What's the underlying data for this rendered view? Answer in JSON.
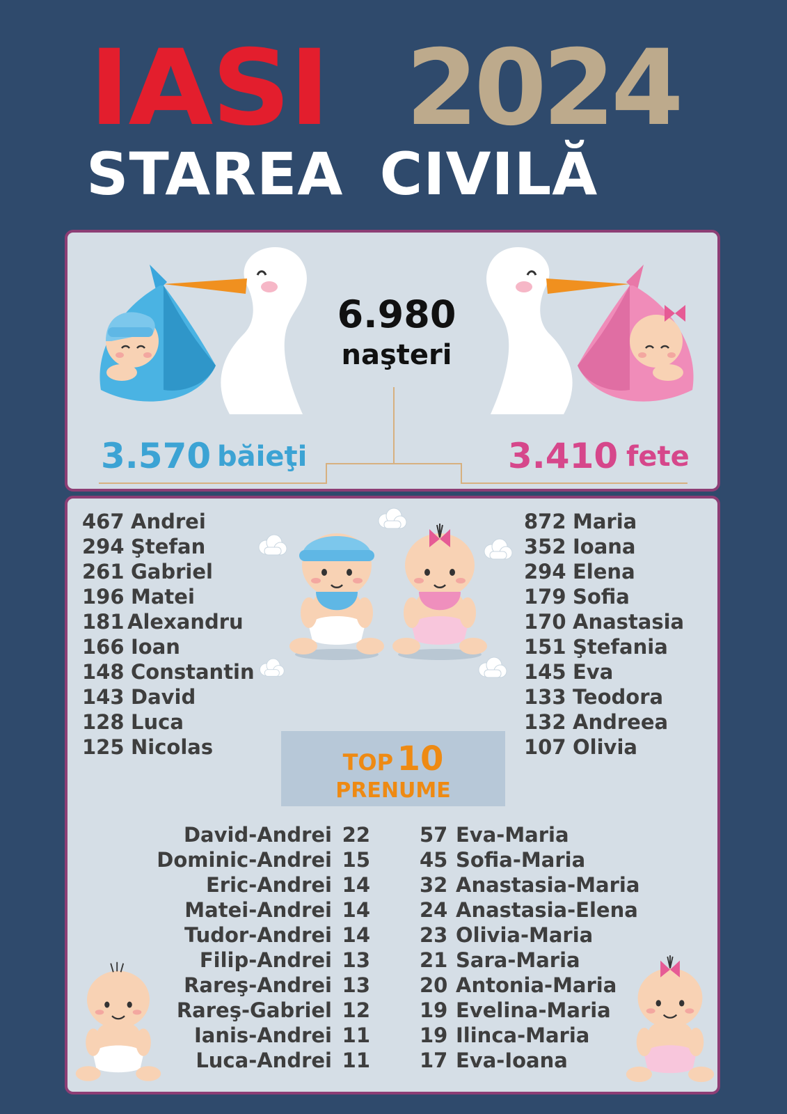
{
  "header": {
    "city": "IASI",
    "year": "2024",
    "subtitle": "STAREA  CIVILĂ"
  },
  "births": {
    "total": "6.980",
    "total_label": "naşteri",
    "boys_total": "3.570",
    "boys_label": "băieţi",
    "girls_total": "3.410",
    "girls_label": "fete"
  },
  "top_badge": {
    "word": "TOP",
    "number": "10",
    "label": "PRENUME"
  },
  "boys_names": [
    {
      "count": "467",
      "name": "Andrei"
    },
    {
      "count": "294",
      "name": "Ştefan"
    },
    {
      "count": "261",
      "name": "Gabriel"
    },
    {
      "count": "196",
      "name": "Matei"
    },
    {
      "count": "181",
      "name": "Alexandru"
    },
    {
      "count": "166",
      "name": "Ioan"
    },
    {
      "count": "148",
      "name": "Constantin"
    },
    {
      "count": "143",
      "name": "David"
    },
    {
      "count": "128",
      "name": "Luca"
    },
    {
      "count": "125",
      "name": "Nicolas"
    }
  ],
  "girls_names": [
    {
      "count": "872",
      "name": "Maria"
    },
    {
      "count": "352",
      "name": "Ioana"
    },
    {
      "count": "294",
      "name": "Elena"
    },
    {
      "count": "179",
      "name": "Sofia"
    },
    {
      "count": "170",
      "name": "Anastasia"
    },
    {
      "count": "151",
      "name": "Ştefania"
    },
    {
      "count": "145",
      "name": "Eva"
    },
    {
      "count": "133",
      "name": "Teodora"
    },
    {
      "count": "132",
      "name": "Andreea"
    },
    {
      "count": "107",
      "name": "Olivia"
    }
  ],
  "boys_compound": [
    {
      "name": "David-Andrei",
      "count": "22"
    },
    {
      "name": "Dominic-Andrei",
      "count": "15"
    },
    {
      "name": "Eric-Andrei",
      "count": "14"
    },
    {
      "name": "Matei-Andrei",
      "count": "14"
    },
    {
      "name": "Tudor-Andrei",
      "count": "14"
    },
    {
      "name": "Filip-Andrei",
      "count": "13"
    },
    {
      "name": "Rareş-Andrei",
      "count": "13"
    },
    {
      "name": "Rareş-Gabriel",
      "count": "12"
    },
    {
      "name": "Ianis-Andrei",
      "count": "11"
    },
    {
      "name": "Luca-Andrei",
      "count": "11"
    }
  ],
  "girls_compound": [
    {
      "count": "57",
      "name": "Eva-Maria"
    },
    {
      "count": "45",
      "name": "Sofia-Maria"
    },
    {
      "count": "32",
      "name": "Anastasia-Maria"
    },
    {
      "count": "24",
      "name": "Anastasia-Elena"
    },
    {
      "count": "23",
      "name": "Olivia-Maria"
    },
    {
      "count": "21",
      "name": "Sara-Maria"
    },
    {
      "count": "20",
      "name": "Antonia-Maria"
    },
    {
      "count": "19",
      "name": "Evelina-Maria"
    },
    {
      "count": "19",
      "name": "Ilinca-Maria"
    },
    {
      "count": "17",
      "name": "Eva-Ioana"
    }
  ],
  "colors": {
    "background": "#2f4a6c",
    "panel": "#d5dee6",
    "panel_border": "#8d3e75",
    "city_red": "#e31e2d",
    "year_tan": "#bdaa8c",
    "boy_blue": "#3ca3d4",
    "girl_pink": "#d6478b",
    "badge_orange": "#ee8a13",
    "text_dark": "#3e3e3e"
  },
  "icons": [
    "stork-boy-bundle-icon",
    "stork-girl-bundle-icon",
    "baby-boy-icon",
    "baby-girl-icon",
    "cloud-icon"
  ]
}
